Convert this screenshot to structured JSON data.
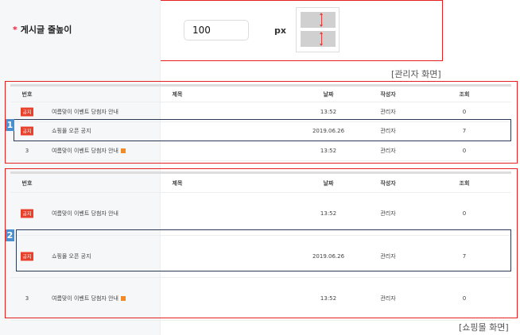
{
  "setting": {
    "label": "게시글 줄높이",
    "required_mark": "*",
    "value": "100",
    "unit": "px"
  },
  "captions": {
    "admin": "[관리자 화면]",
    "shop": "[쇼핑몰 화면]"
  },
  "columns": {
    "no": "번호",
    "title": "제목",
    "date": "날짜",
    "author": "작성자",
    "views": "조회"
  },
  "tables": [
    {
      "badge": "1",
      "rows": [
        {
          "no": "공지",
          "notice": true,
          "title": "여름맞이 이벤트 당첨자 안내",
          "new": false,
          "date": "13:52",
          "author": "관리자",
          "views": "0"
        },
        {
          "no": "공지",
          "notice": true,
          "title": "쇼핑몰 오픈 공지",
          "new": false,
          "date": "2019.06.26",
          "author": "관리자",
          "views": "7"
        },
        {
          "no": "3",
          "notice": false,
          "title": "여름맞이 이벤트 당첨자 안내",
          "new": true,
          "date": "13:52",
          "author": "관리자",
          "views": "0"
        }
      ]
    },
    {
      "badge": "2",
      "rows": [
        {
          "no": "공지",
          "notice": true,
          "title": "여름맞이 이벤트 당첨자 안내",
          "new": false,
          "date": "13:52",
          "author": "관리자",
          "views": "0"
        },
        {
          "no": "공지",
          "notice": true,
          "title": "쇼핑몰 오픈 공지",
          "new": false,
          "date": "2019.06.26",
          "author": "관리자",
          "views": "7"
        },
        {
          "no": "3",
          "notice": false,
          "title": "여름맞이 이벤트 당첨자 안내",
          "new": true,
          "date": "13:52",
          "author": "관리자",
          "views": "0"
        }
      ]
    }
  ],
  "colors": {
    "highlight_border": "#e52020",
    "notice_badge": "#e8402a",
    "step_badge": "#4a8fd0"
  }
}
